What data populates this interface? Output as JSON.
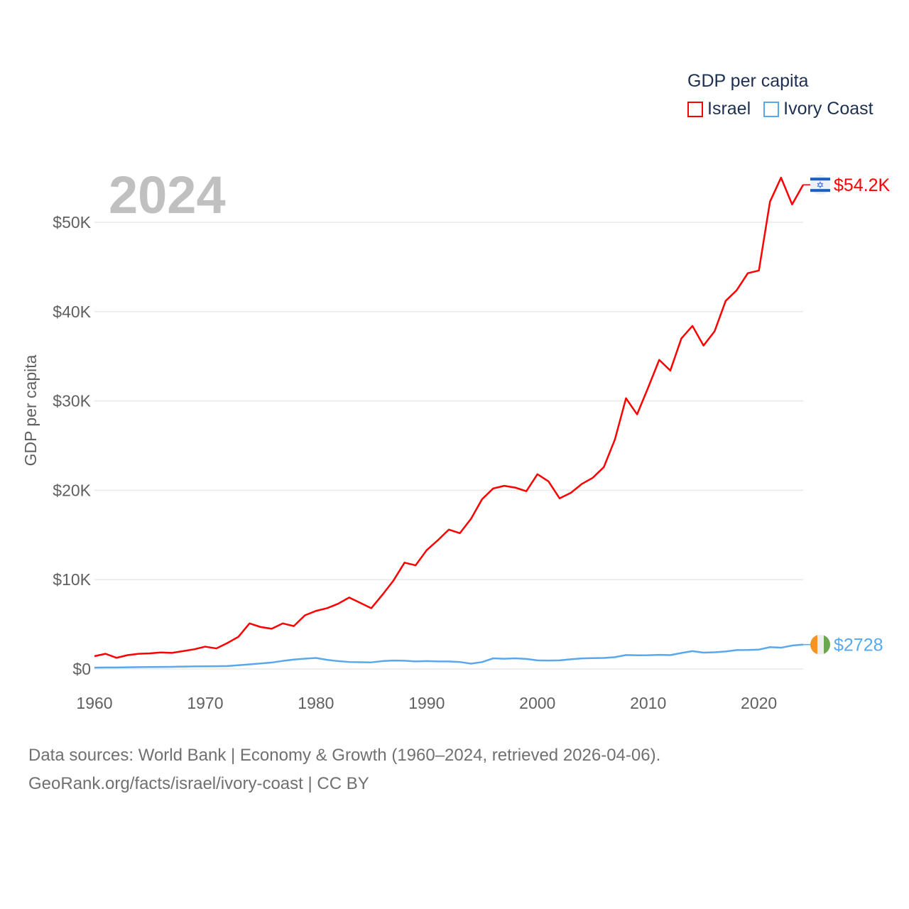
{
  "chart_data": {
    "type": "line",
    "title": "GDP per capita",
    "ylabel": "GDP per capita",
    "xlabel": "",
    "year_label": "2024",
    "xlim": [
      1960,
      2024
    ],
    "ylim": [
      0,
      50000
    ],
    "x_ticks": [
      1960,
      1970,
      1980,
      1990,
      2000,
      2010,
      2020
    ],
    "y_ticks": [
      0,
      10000,
      20000,
      30000,
      40000,
      50000
    ],
    "y_tick_labels": [
      "$0",
      "$10K",
      "$20K",
      "$30K",
      "$40K",
      "$50K"
    ],
    "grid": true,
    "legend_placement": "top-right",
    "x": [
      1960,
      1961,
      1962,
      1963,
      1964,
      1965,
      1966,
      1967,
      1968,
      1969,
      1970,
      1971,
      1972,
      1973,
      1974,
      1975,
      1976,
      1977,
      1978,
      1979,
      1980,
      1981,
      1982,
      1983,
      1984,
      1985,
      1986,
      1987,
      1988,
      1989,
      1990,
      1991,
      1992,
      1993,
      1994,
      1995,
      1996,
      1997,
      1998,
      1999,
      2000,
      2001,
      2002,
      2003,
      2004,
      2005,
      2006,
      2007,
      2008,
      2009,
      2010,
      2011,
      2012,
      2013,
      2014,
      2015,
      2016,
      2017,
      2018,
      2019,
      2020,
      2021,
      2022,
      2023,
      2024
    ],
    "series": [
      {
        "name": "Israel",
        "color": "#ff0000",
        "end_label": "$54.2K",
        "flag": "israel-flag",
        "values": [
          1430,
          1700,
          1250,
          1550,
          1700,
          1750,
          1850,
          1800,
          2000,
          2200,
          2500,
          2300,
          2900,
          3600,
          5100,
          4700,
          4500,
          5100,
          4800,
          6000,
          6500,
          6800,
          7300,
          8000,
          7400,
          6800,
          8300,
          9900,
          11900,
          11600,
          13300,
          14400,
          15600,
          15200,
          16800,
          19000,
          20200,
          20500,
          20300,
          19900,
          21800,
          21000,
          19100,
          19700,
          20700,
          21400,
          22600,
          25700,
          30300,
          28500,
          31500,
          34600,
          33400,
          37000,
          38400,
          36200,
          37800,
          41200,
          42400,
          44300,
          44600,
          52300,
          55000,
          52000,
          54200
        ]
      },
      {
        "name": "Ivory Coast",
        "color": "#5aa8ec",
        "end_label": "$2728",
        "flag": "ivory-coast-flag",
        "values": [
          150,
          170,
          170,
          190,
          210,
          220,
          230,
          240,
          270,
          290,
          300,
          310,
          330,
          420,
          520,
          620,
          720,
          900,
          1050,
          1150,
          1230,
          1020,
          880,
          780,
          760,
          740,
          880,
          940,
          920,
          840,
          880,
          840,
          840,
          780,
          600,
          770,
          1190,
          1140,
          1190,
          1120,
          960,
          940,
          960,
          1080,
          1180,
          1210,
          1230,
          1320,
          1560,
          1530,
          1540,
          1580,
          1550,
          1790,
          2000,
          1830,
          1870,
          1960,
          2120,
          2130,
          2170,
          2440,
          2380,
          2620,
          2728
        ]
      }
    ]
  },
  "footer": {
    "line1": "Data sources: World Bank | Economy & Growth (1960–2024, retrieved 2026-04-06).",
    "line2": "GeoRank.org/facts/israel/ivory-coast | CC BY"
  }
}
